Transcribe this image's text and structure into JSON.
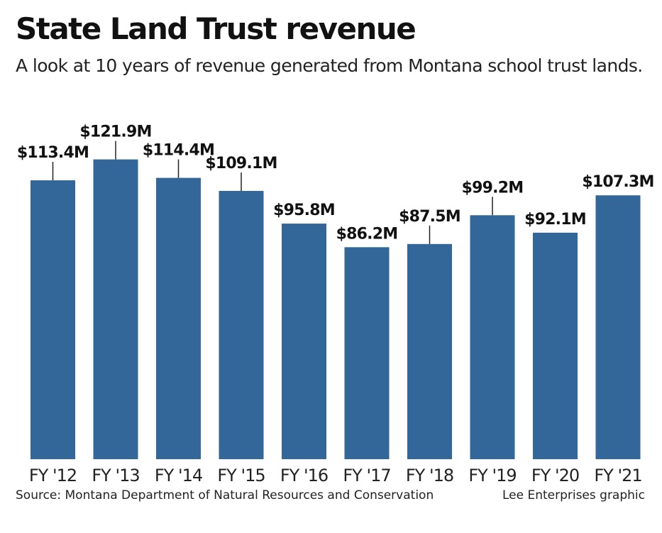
{
  "chart_data": {
    "type": "bar",
    "title": "State Land Trust revenue",
    "subtitle": "A look at 10 years of revenue generated from Montana school trust lands.",
    "categories": [
      "FY '12",
      "FY '13",
      "FY '14",
      "FY '15",
      "FY '16",
      "FY '17",
      "FY '18",
      "FY '19",
      "FY '20",
      "FY '21"
    ],
    "values": [
      113.4,
      121.9,
      114.4,
      109.1,
      95.8,
      86.2,
      87.5,
      99.2,
      92.1,
      107.3
    ],
    "data_labels": [
      "$113.4M",
      "$121.9M",
      "$114.4M",
      "$109.1M",
      "$95.8M",
      "$86.2M",
      "$87.5M",
      "$99.2M",
      "$92.1M",
      "$107.3M"
    ],
    "unit": "$M",
    "grid": false,
    "bar_color": "#336699",
    "source": "Source: Montana Department of Natural Resources and Conservation",
    "credit": "Lee Enterprises graphic"
  }
}
